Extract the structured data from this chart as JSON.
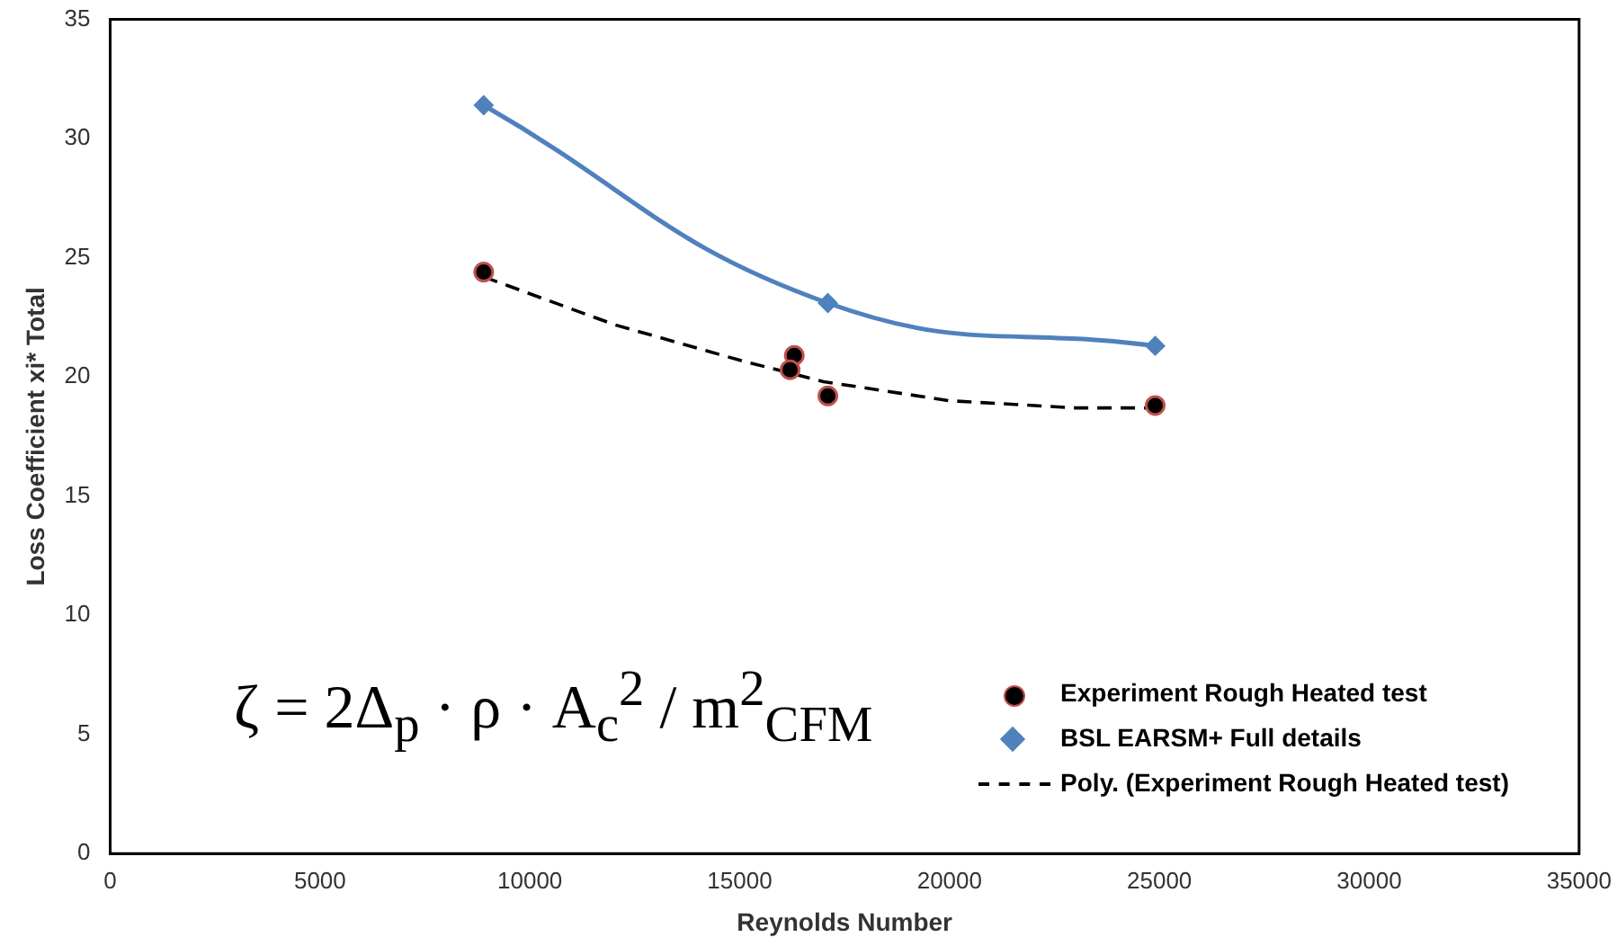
{
  "chart_data": {
    "type": "scatter",
    "xlabel": "Reynolds Number",
    "ylabel": "Loss Coefficient xi* Total",
    "xlim": [
      0,
      35000
    ],
    "xticks": [
      0,
      5000,
      10000,
      15000,
      20000,
      25000,
      30000,
      35000
    ],
    "ylim": [
      0,
      35
    ],
    "yticks": [
      0,
      5,
      10,
      15,
      20,
      25,
      30,
      35
    ],
    "grid": false,
    "legend": "bottom right",
    "series": [
      {
        "name": "Experiment Rough Heated test",
        "type": "scatter",
        "color": "#000000",
        "marker": "circle",
        "x": [
          8900,
          16300,
          16200,
          17100,
          24900
        ],
        "values": [
          24.4,
          20.9,
          20.3,
          19.2,
          18.8
        ]
      },
      {
        "name": "BSL EARSM+ Full details",
        "type": "line",
        "color": "#4f81bd",
        "marker": "diamond",
        "x": [
          8900,
          17100,
          24900
        ],
        "values": [
          31.4,
          23.1,
          21.3
        ]
      },
      {
        "name": "Poly. (Experiment Rough Heated test)",
        "type": "line",
        "color": "#000000",
        "marker": "none",
        "line_style": "dashed",
        "x": [
          8900,
          12000,
          15000,
          17000,
          20000,
          23000,
          24900
        ],
        "values": [
          24.2,
          22.2,
          20.7,
          19.8,
          19.0,
          18.7,
          18.7
        ]
      }
    ],
    "annotations": [
      "ζ = 2Δ$_{p}$ · ρ · A$_{c}$$^{2}$ / m$^{2}$$_{CFM}$"
    ]
  }
}
